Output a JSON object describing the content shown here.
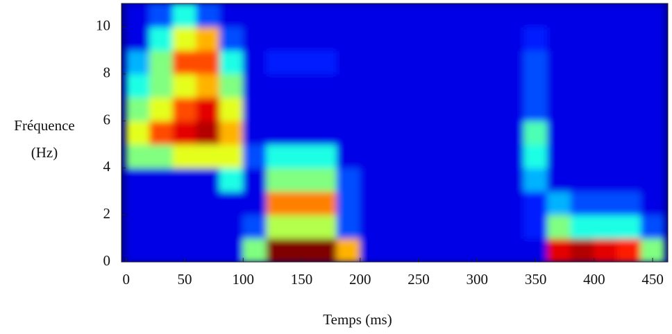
{
  "chart_data": {
    "type": "spectrogram",
    "xlabel": "Temps (ms)",
    "ylabel": [
      "Fréquence",
      "(Hz)"
    ],
    "xlim": [
      -4,
      463
    ],
    "ylim": [
      0,
      11
    ],
    "xticks": [
      0,
      50,
      100,
      150,
      200,
      250,
      300,
      350,
      400,
      450
    ],
    "yticks": [
      0,
      2,
      4,
      6,
      8,
      10
    ],
    "colormap": "jet",
    "background": "#00008f",
    "xbins": [
      0,
      20,
      40,
      60,
      80,
      100,
      120,
      140,
      160,
      180,
      200,
      220,
      240,
      260,
      280,
      300,
      320,
      340,
      360,
      380,
      400,
      420,
      440,
      460
    ],
    "ybins": [
      0,
      1,
      2,
      3,
      4,
      5,
      6,
      7,
      8,
      9,
      10,
      11
    ],
    "z": [
      [
        0.1,
        0.1,
        0.1,
        0.1,
        0.1,
        0.5,
        1,
        1,
        1,
        0.7,
        0.1,
        0.1,
        0.1,
        0.1,
        0.1,
        0.1,
        0.1,
        0.1,
        0.9,
        0.95,
        0.9,
        0.85,
        0.5
      ],
      [
        0.1,
        0.1,
        0.1,
        0.1,
        0.1,
        0.2,
        0.55,
        0.55,
        0.55,
        0.2,
        0.1,
        0.1,
        0.1,
        0.1,
        0.1,
        0.1,
        0.1,
        0.15,
        0.5,
        0.4,
        0.4,
        0.4,
        0.2
      ],
      [
        0.1,
        0.1,
        0.1,
        0.1,
        0.1,
        0.1,
        0.75,
        0.75,
        0.75,
        0.2,
        0.1,
        0.1,
        0.1,
        0.1,
        0.1,
        0.1,
        0.1,
        0.15,
        0.3,
        0.2,
        0.2,
        0.2,
        0.1
      ],
      [
        0.1,
        0.1,
        0.1,
        0.1,
        0.4,
        0.1,
        0.5,
        0.5,
        0.5,
        0.2,
        0.1,
        0.1,
        0.1,
        0.1,
        0.1,
        0.1,
        0.1,
        0.3,
        0.1,
        0.1,
        0.1,
        0.1,
        0.1
      ],
      [
        0.5,
        0.5,
        0.6,
        0.6,
        0.6,
        0.2,
        0.4,
        0.4,
        0.4,
        0.1,
        0.1,
        0.1,
        0.1,
        0.1,
        0.1,
        0.1,
        0.1,
        0.4,
        0.1,
        0.1,
        0.1,
        0.1,
        0.1
      ],
      [
        0.6,
        0.8,
        0.9,
        0.95,
        0.7,
        0.1,
        0.1,
        0.1,
        0.1,
        0.1,
        0.1,
        0.1,
        0.1,
        0.1,
        0.1,
        0.1,
        0.1,
        0.45,
        0.1,
        0.1,
        0.1,
        0.1,
        0.1
      ],
      [
        0.5,
        0.6,
        0.8,
        0.9,
        0.6,
        0.1,
        0.1,
        0.1,
        0.1,
        0.1,
        0.1,
        0.1,
        0.1,
        0.1,
        0.1,
        0.1,
        0.1,
        0.2,
        0.1,
        0.1,
        0.1,
        0.1,
        0.1
      ],
      [
        0.4,
        0.5,
        0.6,
        0.7,
        0.5,
        0.1,
        0.1,
        0.1,
        0.1,
        0.1,
        0.1,
        0.1,
        0.1,
        0.1,
        0.1,
        0.1,
        0.1,
        0.2,
        0.1,
        0.1,
        0.1,
        0.1,
        0.1
      ],
      [
        0.3,
        0.5,
        0.8,
        0.8,
        0.4,
        0.1,
        0.15,
        0.15,
        0.15,
        0.1,
        0.1,
        0.1,
        0.1,
        0.1,
        0.1,
        0.1,
        0.1,
        0.2,
        0.1,
        0.1,
        0.1,
        0.1,
        0.1
      ],
      [
        0.1,
        0.4,
        0.6,
        0.7,
        0.2,
        0.1,
        0.1,
        0.1,
        0.1,
        0.1,
        0.1,
        0.1,
        0.1,
        0.1,
        0.1,
        0.1,
        0.1,
        0.15,
        0.1,
        0.1,
        0.1,
        0.1,
        0.1
      ],
      [
        0.1,
        0.2,
        0.4,
        0.2,
        0.1,
        0.1,
        0.1,
        0.1,
        0.1,
        0.1,
        0.1,
        0.1,
        0.1,
        0.1,
        0.1,
        0.1,
        0.1,
        0.1,
        0.1,
        0.1,
        0.1,
        0.1,
        0.1
      ]
    ]
  }
}
